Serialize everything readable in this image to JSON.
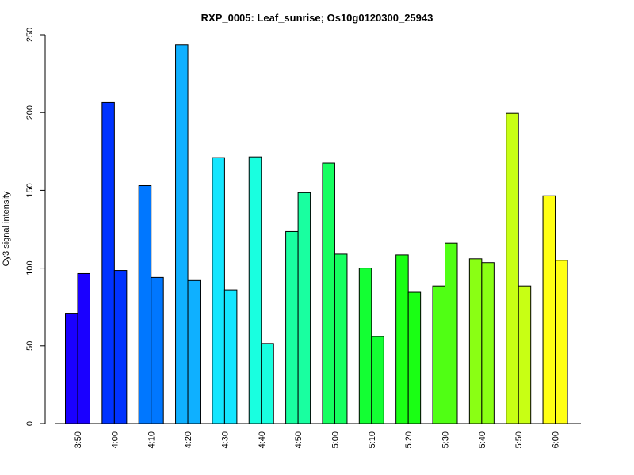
{
  "chart_data": {
    "type": "bar",
    "title": "RXP_0005: Leaf_sunrise; Os10g0120300_25943",
    "xlabel": "",
    "ylabel": "Cy3 signal intensity",
    "ylim": [
      0,
      250
    ],
    "yticks": [
      0,
      50,
      100,
      150,
      200,
      250
    ],
    "grid": false,
    "categories": [
      "3:50",
      "4:00",
      "4:10",
      "4:20",
      "4:30",
      "4:40",
      "4:50",
      "5:00",
      "5:10",
      "5:20",
      "5:30",
      "5:40",
      "5:50",
      "6:00"
    ],
    "series": [
      {
        "values": [
          71,
          206.5,
          153,
          243.5,
          171,
          171.5,
          123.5,
          167.5,
          100,
          108.5,
          88.5,
          106,
          199.5,
          146.5
        ]
      },
      {
        "values": [
          96.5,
          98.5,
          94,
          92,
          86,
          51.5,
          148.5,
          109,
          56,
          84.5,
          116,
          103.5,
          88.5,
          105
        ]
      }
    ],
    "colors": [
      "#1a00ff",
      "#0033ff",
      "#0077ff",
      "#0fb0ff",
      "#14e6ff",
      "#19ffe0",
      "#19ffa0",
      "#16ff60",
      "#13ff33",
      "#1aff14",
      "#50ff14",
      "#8aff14",
      "#c8ff14",
      "#ffff14"
    ]
  }
}
